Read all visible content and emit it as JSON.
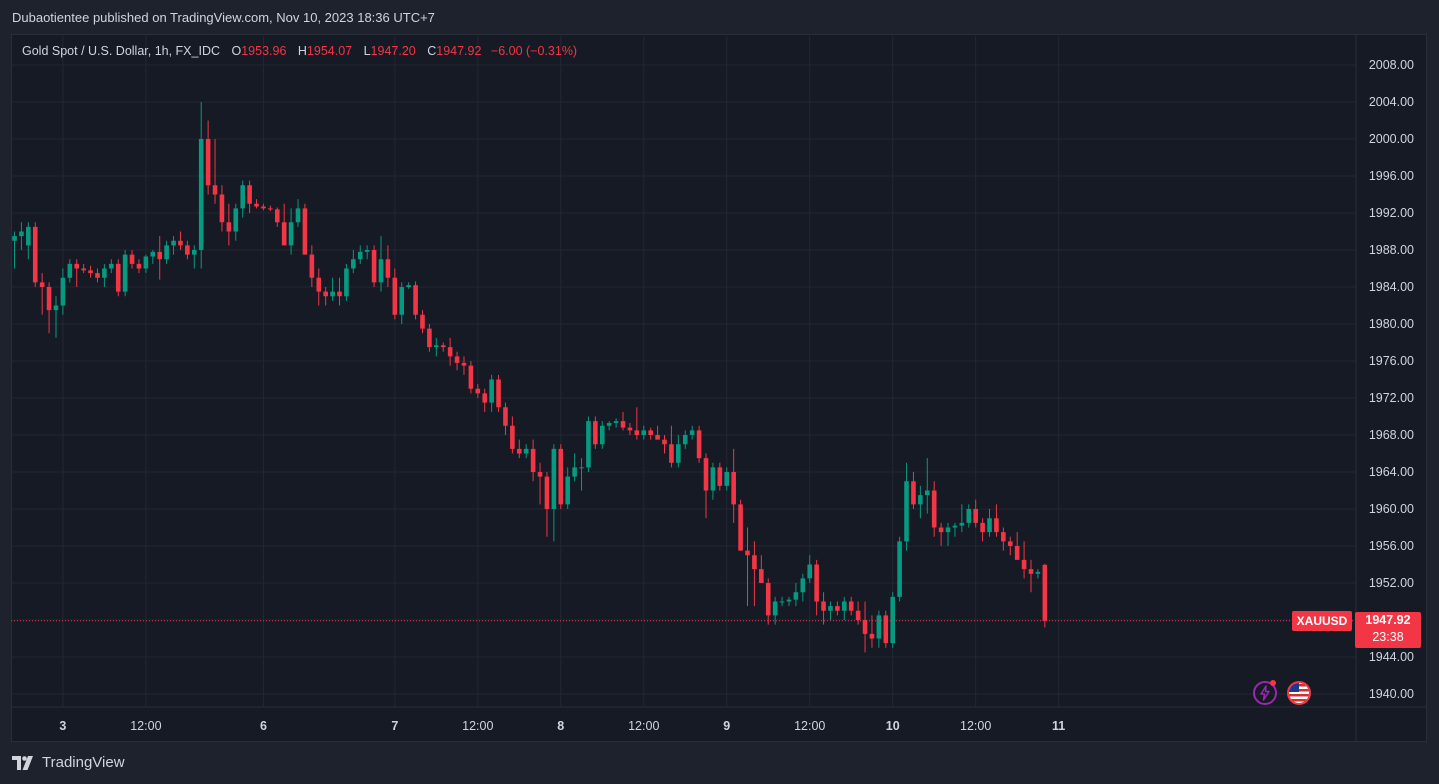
{
  "header": {
    "publisher_text": "Dubaotientee published on TradingView.com, Nov 10, 2023 18:36 UTC+7"
  },
  "legend": {
    "symbol_text": "Gold Spot / U.S. Dollar, 1h, FX_IDC",
    "open_label": "O",
    "open_value": "1953.96",
    "high_label": "H",
    "high_value": "1954.07",
    "low_label": "L",
    "low_value": "1947.20",
    "close_label": "C",
    "close_value": "1947.92",
    "change_text": "−6.00 (−0.31%)"
  },
  "price_tag": {
    "symbol": "XAUUSD",
    "price": "1947.92",
    "countdown": "23:38"
  },
  "footer": {
    "brand": "TradingView"
  },
  "icons": [
    "lightning-icon",
    "us-flag-icon",
    "tradingview-logo-icon"
  ],
  "colors": {
    "up": "#089981",
    "down": "#f23645",
    "background": "#161a25",
    "grid": "#232734"
  },
  "chart_data": {
    "type": "candlestick",
    "symbol": "XAUUSD",
    "timeframe": "1h",
    "ylim": [
      1938,
      2011
    ],
    "y_ticks": [
      "2008.00",
      "2004.00",
      "2000.00",
      "1996.00",
      "1992.00",
      "1988.00",
      "1984.00",
      "1980.00",
      "1976.00",
      "1972.00",
      "1968.00",
      "1964.00",
      "1960.00",
      "1956.00",
      "1952.00",
      "1948.00",
      "1944.00",
      "1940.00"
    ],
    "x_ticks": [
      {
        "label": "3",
        "index": 7
      },
      {
        "label": "12:00",
        "index": 19
      },
      {
        "label": "6",
        "index": 36
      },
      {
        "label": "7",
        "index": 55
      },
      {
        "label": "12:00",
        "index": 67
      },
      {
        "label": "8",
        "index": 79
      },
      {
        "label": "12:00",
        "index": 91
      },
      {
        "label": "9",
        "index": 103
      },
      {
        "label": "12:00",
        "index": 115
      },
      {
        "label": "10",
        "index": 127
      },
      {
        "label": "12:00",
        "index": 139
      },
      {
        "label": "11",
        "index": 151
      }
    ],
    "last_price": 1947.92,
    "candles": [
      [
        1989.0,
        1990.0,
        1986.0,
        1989.5
      ],
      [
        1989.5,
        1991.0,
        1988.0,
        1990.0
      ],
      [
        1988.5,
        1991.0,
        1987.0,
        1990.5
      ],
      [
        1990.5,
        1991.0,
        1984.0,
        1984.5
      ],
      [
        1984.5,
        1985.5,
        1981.0,
        1984.0
      ],
      [
        1984.0,
        1984.5,
        1979.0,
        1981.5
      ],
      [
        1981.5,
        1983.0,
        1978.5,
        1982.0
      ],
      [
        1982.0,
        1986.0,
        1981.0,
        1985.0
      ],
      [
        1985.0,
        1987.0,
        1984.5,
        1986.5
      ],
      [
        1986.5,
        1987.0,
        1984.0,
        1986.0
      ],
      [
        1986.0,
        1986.5,
        1985.5,
        1985.8
      ],
      [
        1985.8,
        1986.3,
        1985.0,
        1985.5
      ],
      [
        1985.5,
        1986.0,
        1984.5,
        1985.0
      ],
      [
        1985.0,
        1986.5,
        1984.0,
        1986.0
      ],
      [
        1986.0,
        1987.0,
        1985.5,
        1986.5
      ],
      [
        1986.5,
        1987.0,
        1983.0,
        1983.5
      ],
      [
        1983.5,
        1988.0,
        1983.0,
        1987.5
      ],
      [
        1987.5,
        1988.0,
        1986.0,
        1986.5
      ],
      [
        1986.5,
        1987.0,
        1985.5,
        1986.0
      ],
      [
        1986.0,
        1987.5,
        1985.5,
        1987.3
      ],
      [
        1987.3,
        1988.0,
        1986.5,
        1987.8
      ],
      [
        1987.8,
        1989.5,
        1984.8,
        1987.0
      ],
      [
        1987.0,
        1989.0,
        1986.5,
        1988.5
      ],
      [
        1988.5,
        1989.5,
        1987.5,
        1989.0
      ],
      [
        1989.0,
        1990.0,
        1988.0,
        1988.5
      ],
      [
        1988.5,
        1989.0,
        1987.0,
        1987.5
      ],
      [
        1987.5,
        1988.5,
        1986.0,
        1988.0
      ],
      [
        1988.0,
        2004.0,
        1986.0,
        2000.0
      ],
      [
        2000.0,
        2002.0,
        1994.0,
        1995.0
      ],
      [
        1995.0,
        2000.0,
        1993.0,
        1994.0
      ],
      [
        1994.0,
        1995.0,
        1990.0,
        1991.0
      ],
      [
        1991.0,
        1993.0,
        1988.5,
        1990.0
      ],
      [
        1990.0,
        1993.0,
        1989.0,
        1992.5
      ],
      [
        1992.5,
        1995.5,
        1991.5,
        1995.0
      ],
      [
        1995.0,
        1995.5,
        1992.0,
        1993.0
      ],
      [
        1993.0,
        1993.5,
        1992.5,
        1992.7
      ],
      [
        1992.7,
        1993.0,
        1992.3,
        1992.5
      ],
      [
        1992.5,
        1992.8,
        1992.2,
        1992.4
      ],
      [
        1992.4,
        1992.6,
        1990.5,
        1991.0
      ],
      [
        1991.0,
        1993.0,
        1988.5,
        1988.5
      ],
      [
        1988.5,
        1992.5,
        1987.5,
        1991.0
      ],
      [
        1991.0,
        1993.5,
        1990.5,
        1992.5
      ],
      [
        1992.5,
        1993.0,
        1987.5,
        1987.5
      ],
      [
        1987.5,
        1988.5,
        1984.0,
        1985.0
      ],
      [
        1985.0,
        1986.0,
        1982.0,
        1983.5
      ],
      [
        1983.5,
        1984.0,
        1982.0,
        1983.0
      ],
      [
        1983.0,
        1985.0,
        1982.5,
        1983.5
      ],
      [
        1983.5,
        1985.0,
        1982.0,
        1983.0
      ],
      [
        1983.0,
        1986.5,
        1982.5,
        1986.0
      ],
      [
        1986.0,
        1988.0,
        1985.5,
        1987.0
      ],
      [
        1987.0,
        1988.5,
        1986.5,
        1987.8
      ],
      [
        1987.8,
        1988.5,
        1987.0,
        1988.0
      ],
      [
        1988.0,
        1988.5,
        1984.0,
        1984.5
      ],
      [
        1984.5,
        1989.5,
        1983.5,
        1987.0
      ],
      [
        1987.0,
        1988.5,
        1984.0,
        1985.0
      ],
      [
        1985.0,
        1986.0,
        1980.5,
        1981.0
      ],
      [
        1981.0,
        1984.5,
        1980.0,
        1984.0
      ],
      [
        1984.0,
        1984.5,
        1983.8,
        1984.2
      ],
      [
        1984.2,
        1984.6,
        1980.5,
        1981.0
      ],
      [
        1981.0,
        1981.5,
        1979.0,
        1979.5
      ],
      [
        1979.5,
        1980.0,
        1977.0,
        1977.5
      ],
      [
        1977.5,
        1978.5,
        1976.5,
        1977.7
      ],
      [
        1977.7,
        1978.0,
        1977.0,
        1977.5
      ],
      [
        1977.5,
        1978.5,
        1975.5,
        1976.5
      ],
      [
        1976.5,
        1977.0,
        1975.0,
        1975.8
      ],
      [
        1975.8,
        1976.5,
        1974.5,
        1975.5
      ],
      [
        1975.5,
        1976.0,
        1972.5,
        1973.0
      ],
      [
        1973.0,
        1973.5,
        1972.0,
        1972.5
      ],
      [
        1972.5,
        1973.0,
        1970.5,
        1971.5
      ],
      [
        1971.5,
        1974.5,
        1970.5,
        1974.0
      ],
      [
        1974.0,
        1974.5,
        1970.5,
        1971.0
      ],
      [
        1971.0,
        1971.5,
        1968.0,
        1969.0
      ],
      [
        1969.0,
        1970.0,
        1966.0,
        1966.5
      ],
      [
        1966.5,
        1967.5,
        1965.5,
        1966.0
      ],
      [
        1966.0,
        1967.0,
        1965.5,
        1966.5
      ],
      [
        1966.5,
        1967.5,
        1963.0,
        1964.0
      ],
      [
        1964.0,
        1965.0,
        1960.5,
        1963.5
      ],
      [
        1963.5,
        1964.0,
        1957.0,
        1960.0
      ],
      [
        1960.0,
        1967.0,
        1956.5,
        1966.5
      ],
      [
        1966.5,
        1967.0,
        1960.0,
        1960.5
      ],
      [
        1960.5,
        1964.5,
        1960.0,
        1963.5
      ],
      [
        1963.5,
        1966.0,
        1963.0,
        1964.5
      ],
      [
        1964.5,
        1965.5,
        1962.0,
        1964.5
      ],
      [
        1964.5,
        1970.0,
        1964.0,
        1969.5
      ],
      [
        1969.5,
        1970.0,
        1966.5,
        1967.0
      ],
      [
        1967.0,
        1969.5,
        1966.5,
        1969.0
      ],
      [
        1969.0,
        1969.5,
        1968.5,
        1969.3
      ],
      [
        1969.3,
        1969.8,
        1968.8,
        1969.5
      ],
      [
        1969.5,
        1970.5,
        1968.5,
        1968.8
      ],
      [
        1968.8,
        1969.3,
        1968.0,
        1968.5
      ],
      [
        1968.5,
        1971.0,
        1967.5,
        1968.0
      ],
      [
        1968.0,
        1969.0,
        1967.5,
        1968.5
      ],
      [
        1968.5,
        1968.8,
        1967.5,
        1968.0
      ],
      [
        1968.0,
        1969.0,
        1967.5,
        1967.5
      ],
      [
        1967.5,
        1968.0,
        1966.0,
        1967.0
      ],
      [
        1967.0,
        1969.0,
        1964.5,
        1965.0
      ],
      [
        1965.0,
        1968.0,
        1964.5,
        1967.0
      ],
      [
        1967.0,
        1968.5,
        1966.5,
        1968.0
      ],
      [
        1968.0,
        1969.0,
        1967.5,
        1968.5
      ],
      [
        1968.5,
        1969.0,
        1965.0,
        1965.5
      ],
      [
        1965.5,
        1966.0,
        1959.0,
        1962.0
      ],
      [
        1962.0,
        1965.0,
        1961.0,
        1964.5
      ],
      [
        1964.5,
        1965.0,
        1962.0,
        1962.5
      ],
      [
        1962.5,
        1964.5,
        1962.0,
        1964.0
      ],
      [
        1964.0,
        1966.5,
        1958.5,
        1960.5
      ],
      [
        1960.5,
        1961.0,
        1955.5,
        1955.5
      ],
      [
        1955.5,
        1958.0,
        1949.5,
        1955.0
      ],
      [
        1955.0,
        1956.5,
        1949.5,
        1953.5
      ],
      [
        1953.5,
        1955.0,
        1952.0,
        1952.0
      ],
      [
        1952.0,
        1952.5,
        1947.5,
        1948.5
      ],
      [
        1948.5,
        1950.5,
        1947.5,
        1950.0
      ],
      [
        1950.0,
        1950.5,
        1949.5,
        1950.0
      ],
      [
        1950.0,
        1950.5,
        1949.5,
        1950.2
      ],
      [
        1950.2,
        1952.0,
        1949.5,
        1951.0
      ],
      [
        1951.0,
        1953.0,
        1950.0,
        1952.5
      ],
      [
        1952.5,
        1955.0,
        1952.0,
        1954.0
      ],
      [
        1954.0,
        1954.5,
        1948.5,
        1950.0
      ],
      [
        1950.0,
        1951.0,
        1947.5,
        1949.0
      ],
      [
        1949.0,
        1950.0,
        1948.0,
        1949.5
      ],
      [
        1949.5,
        1950.0,
        1948.5,
        1949.0
      ],
      [
        1949.0,
        1950.5,
        1948.0,
        1950.0
      ],
      [
        1950.0,
        1950.5,
        1948.5,
        1949.0
      ],
      [
        1949.0,
        1950.0,
        1947.5,
        1948.0
      ],
      [
        1948.0,
        1950.0,
        1944.5,
        1946.5
      ],
      [
        1946.5,
        1948.5,
        1945.0,
        1946.0
      ],
      [
        1946.0,
        1949.0,
        1945.0,
        1948.5
      ],
      [
        1948.5,
        1949.0,
        1945.0,
        1945.5
      ],
      [
        1945.5,
        1951.0,
        1945.0,
        1950.5
      ],
      [
        1950.5,
        1957.0,
        1950.0,
        1956.5
      ],
      [
        1956.5,
        1965.0,
        1955.5,
        1963.0
      ],
      [
        1963.0,
        1964.0,
        1960.0,
        1960.5
      ],
      [
        1960.5,
        1962.5,
        1959.0,
        1961.5
      ],
      [
        1961.5,
        1965.5,
        1959.5,
        1962.0
      ],
      [
        1962.0,
        1963.0,
        1957.0,
        1958.0
      ],
      [
        1958.0,
        1958.5,
        1956.0,
        1957.5
      ],
      [
        1957.5,
        1958.5,
        1956.0,
        1958.0
      ],
      [
        1958.0,
        1958.5,
        1957.0,
        1958.2
      ],
      [
        1958.2,
        1960.5,
        1957.5,
        1958.5
      ],
      [
        1958.5,
        1960.5,
        1958.0,
        1960.0
      ],
      [
        1960.0,
        1961.0,
        1958.0,
        1958.5
      ],
      [
        1958.5,
        1959.0,
        1956.5,
        1957.5
      ],
      [
        1957.5,
        1960.0,
        1957.0,
        1959.0
      ],
      [
        1959.0,
        1960.5,
        1957.0,
        1957.5
      ],
      [
        1957.5,
        1958.0,
        1955.5,
        1956.5
      ],
      [
        1956.5,
        1957.0,
        1955.0,
        1956.0
      ],
      [
        1956.0,
        1957.5,
        1955.0,
        1954.5
      ],
      [
        1954.5,
        1956.5,
        1952.5,
        1953.5
      ],
      [
        1953.5,
        1954.5,
        1951.0,
        1953.0
      ],
      [
        1953.0,
        1953.5,
        1952.5,
        1953.2
      ],
      [
        1953.96,
        1954.07,
        1947.2,
        1947.92
      ]
    ]
  }
}
